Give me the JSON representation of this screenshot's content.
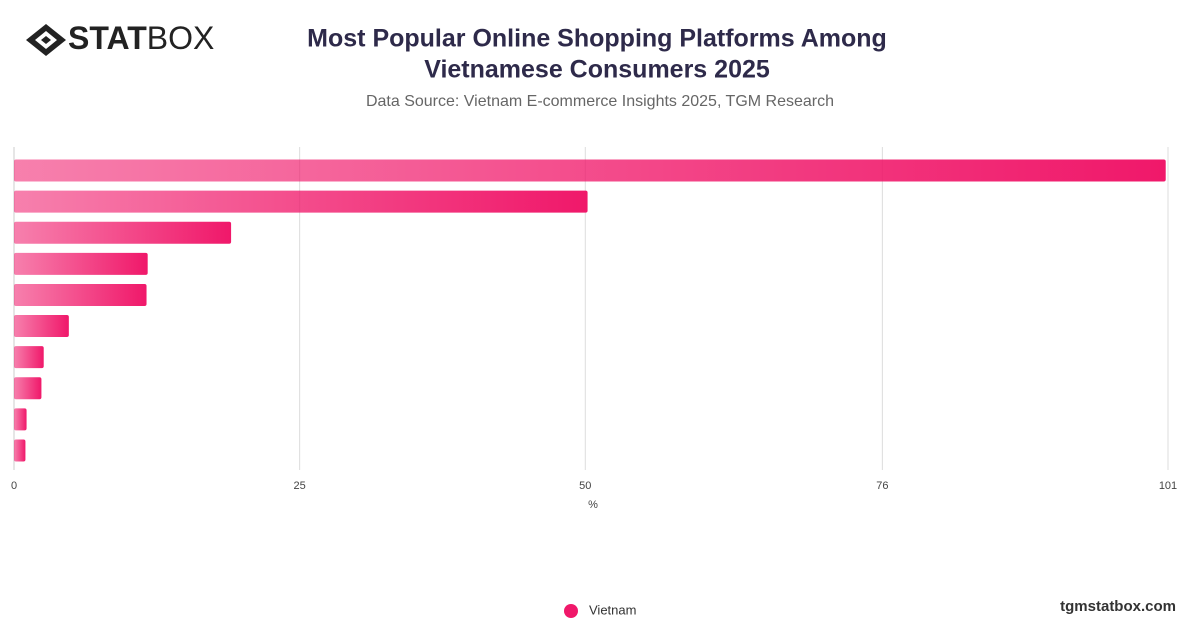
{
  "brand": {
    "bold": "STAT",
    "light": "BOX"
  },
  "watermark": "tgmstatbox.com",
  "chart_data": {
    "type": "bar",
    "orientation": "horizontal",
    "title": [
      "Most Popular Online Shopping Platforms Among",
      "Vietnamese Consumers 2025"
    ],
    "subtitle": "Data Source: Vietnam E-commerce Insights 2025, TGM Research",
    "x_label": "%",
    "categories": [
      null,
      null,
      null,
      null,
      null,
      null,
      null,
      null,
      null,
      null
    ],
    "series": [
      {
        "name": "Vietnam",
        "color": "#f0186a",
        "values": [
          100.8,
          50.2,
          19.0,
          11.7,
          11.6,
          4.8,
          2.6,
          2.4,
          1.1,
          1.0
        ]
      }
    ],
    "xlim": [
      0,
      101
    ],
    "xticks": [
      0,
      25,
      50,
      76,
      101
    ],
    "grid": true,
    "legend": "bottom"
  }
}
